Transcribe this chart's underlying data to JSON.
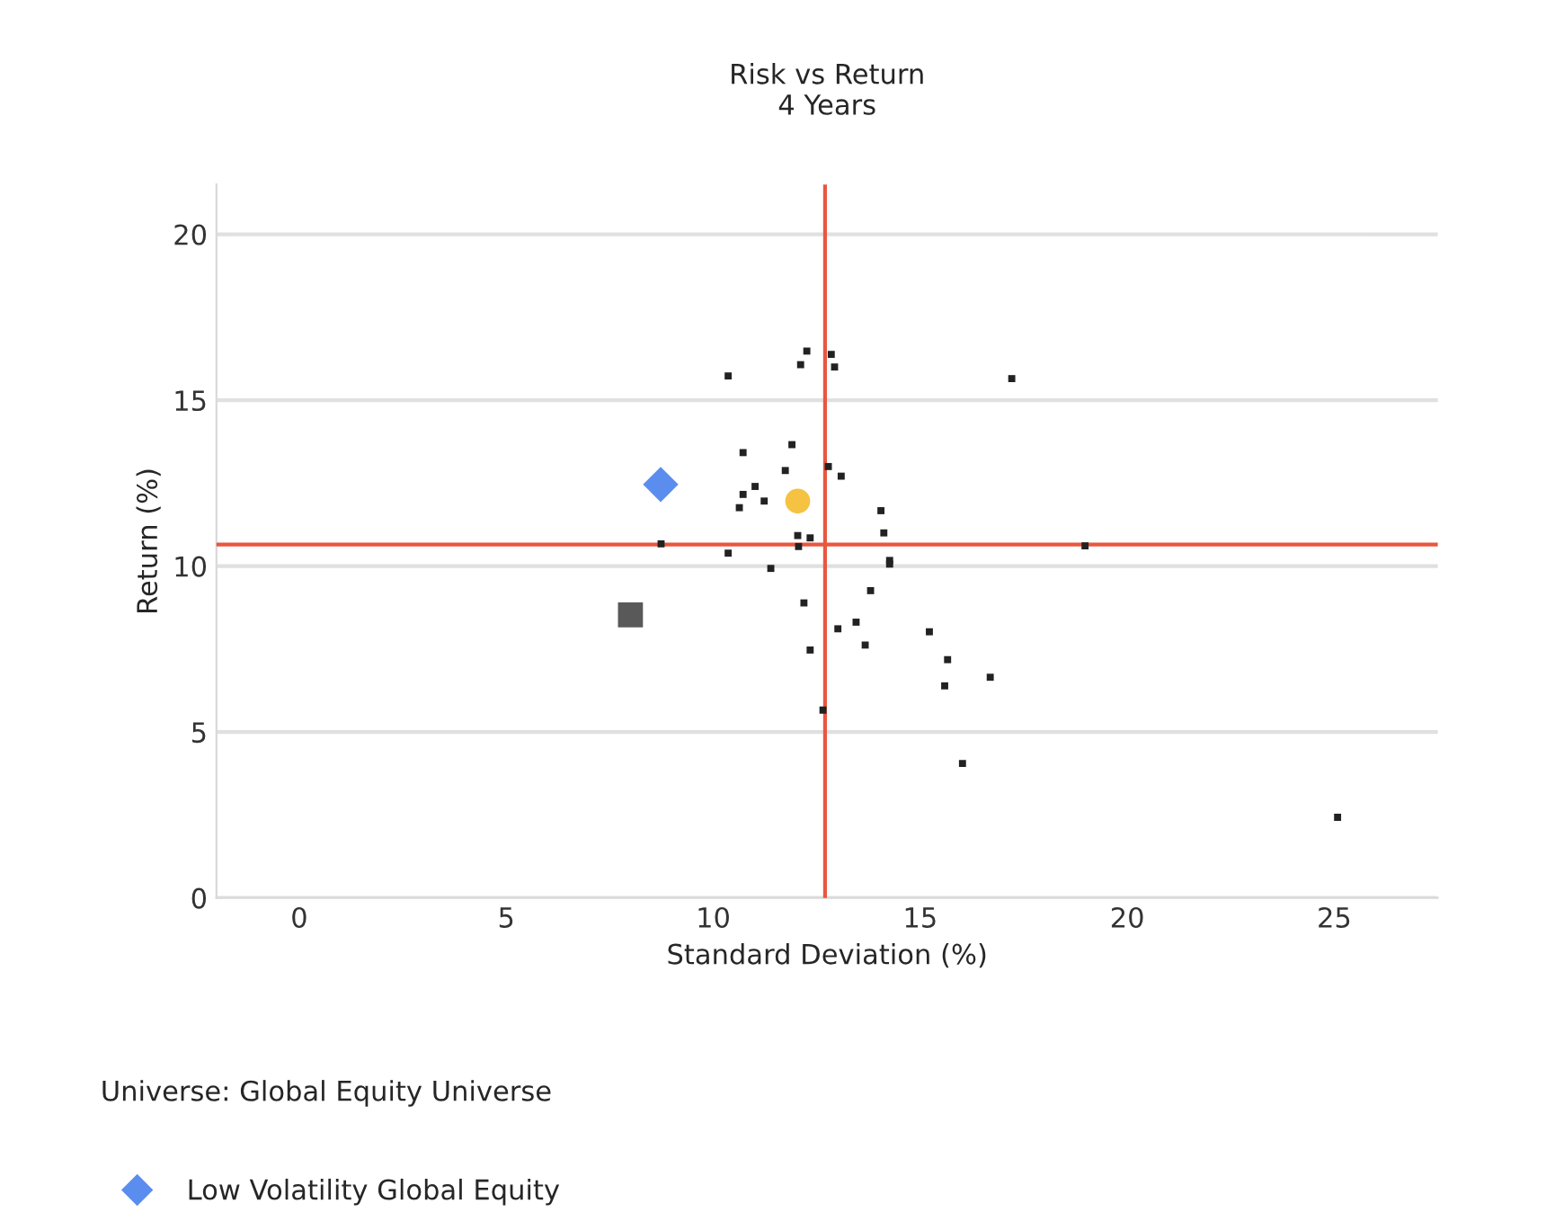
{
  "chart_data": {
    "type": "scatter",
    "title": "Risk vs Return\n4 Years",
    "xlabel": "Standard Deviation (%)",
    "ylabel": "Return (%)",
    "xlim": [
      -2,
      27.5
    ],
    "ylim": [
      0,
      21.5
    ],
    "xticks": [
      0,
      5,
      10,
      15,
      20,
      25
    ],
    "yticks": [
      0,
      5,
      10,
      15,
      20
    ],
    "grid": "y",
    "legend": "bottom",
    "annotations": [
      "Universe: Global Equity Universe"
    ],
    "ref_lines": [
      {
        "axis": "x",
        "value": 12.7,
        "color": "#e8573f"
      },
      {
        "axis": "y",
        "value": 10.65,
        "color": "#e8573f"
      }
    ],
    "series": [
      {
        "color": "#222222",
        "marker": "square",
        "x": [
          10.36,
          12.26,
          12.11,
          12.85,
          12.93,
          17.21,
          10.72,
          11.9,
          11.74,
          12.78,
          13.09,
          11.01,
          10.72,
          11.23,
          10.63,
          14.05,
          14.12,
          8.74,
          12.04,
          12.34,
          12.06,
          10.36,
          18.98,
          14.26,
          14.26,
          11.39,
          13.8,
          12.19,
          13.45,
          13.01,
          15.22,
          13.67,
          12.34,
          15.66,
          15.59,
          16.69,
          12.65,
          16.02,
          25.08
        ],
        "values": [
          15.73,
          16.48,
          16.07,
          16.38,
          16.0,
          15.65,
          13.42,
          13.66,
          12.88,
          13.0,
          12.71,
          12.4,
          12.16,
          11.96,
          11.76,
          11.67,
          11.0,
          10.67,
          10.92,
          10.85,
          10.59,
          10.39,
          10.61,
          10.17,
          10.06,
          9.93,
          9.26,
          8.89,
          8.31,
          8.11,
          8.02,
          7.62,
          7.47,
          7.18,
          6.39,
          6.65,
          5.66,
          4.05,
          2.43
        ]
      },
      {
        "name": "Low Volatility Global Equity",
        "color": "#5b8def",
        "marker": "diamond",
        "x": [
          8.73
        ],
        "values": [
          12.46
        ]
      },
      {
        "color": "#595959",
        "marker": "square",
        "x": [
          8.0
        ],
        "values": [
          8.53
        ]
      },
      {
        "color": "#f5c242",
        "marker": "circle",
        "x": [
          12.04
        ],
        "values": [
          11.96
        ]
      }
    ]
  }
}
